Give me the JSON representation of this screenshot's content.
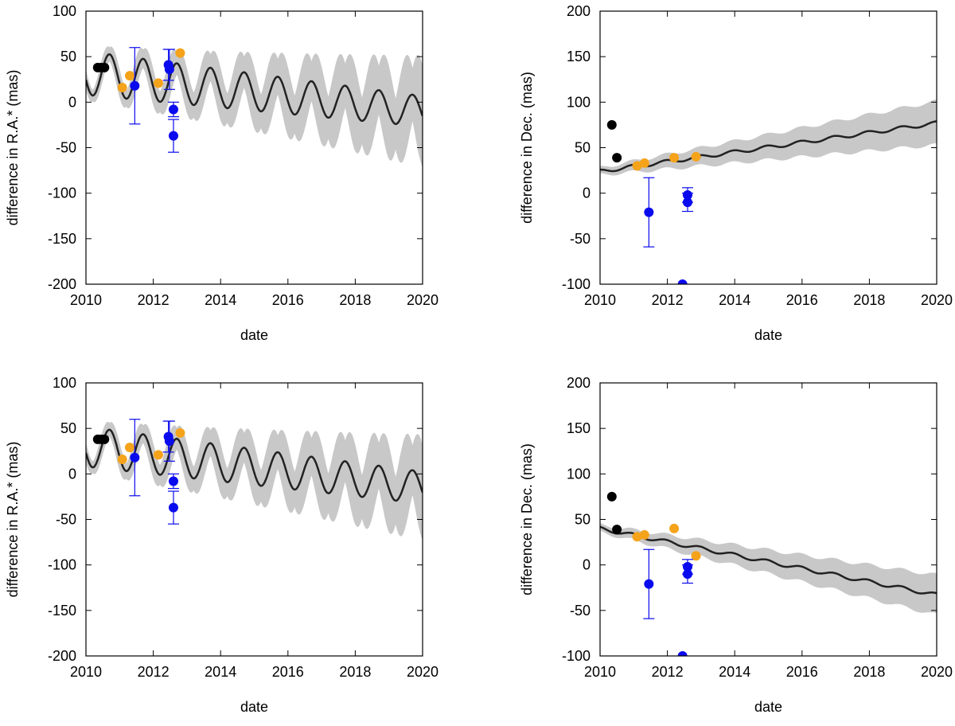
{
  "colors": {
    "black": "#000000",
    "orange": "#f5a31b",
    "blue": "#0a0aee",
    "band": "#c8c8c8",
    "model": "#222222"
  },
  "chart_data": [
    {
      "id": "tl",
      "type": "scatter",
      "xlabel": "date",
      "ylabel": "difference in R.A.* (mas)",
      "xlim": [
        2010,
        2020
      ],
      "ylim": [
        -200,
        100
      ],
      "xticks": [
        "2010",
        "2012",
        "2014",
        "2016",
        "2018",
        "2020"
      ],
      "yticks": [
        "-200",
        "-150",
        "-100",
        "-50",
        "0",
        "50",
        "100"
      ],
      "model": {
        "kind": "ra",
        "a0": 32,
        "slope": -4.2,
        "amp": 24,
        "phase": 0.55,
        "damp": 0.03,
        "band0": 6,
        "bandgrow": 2.4
      },
      "points": {
        "black": [
          [
            2010.35,
            38
          ],
          [
            2010.45,
            38
          ],
          [
            2010.55,
            38
          ]
        ],
        "orange": [
          [
            2011.08,
            16
          ],
          [
            2011.3,
            29
          ],
          [
            2012.15,
            21
          ],
          [
            2012.8,
            54
          ]
        ],
        "blue": [
          [
            2011.45,
            18,
            42
          ],
          [
            2012.45,
            41,
            17
          ],
          [
            2012.48,
            36,
            22
          ],
          [
            2012.6,
            -8,
            8
          ],
          [
            2012.6,
            -37,
            18
          ]
        ]
      }
    },
    {
      "id": "tr",
      "type": "scatter",
      "xlabel": "date",
      "ylabel": "difference in Dec. (mas)",
      "xlim": [
        2010,
        2020
      ],
      "ylim": [
        -100,
        200
      ],
      "xticks": [
        "2010",
        "2012",
        "2014",
        "2016",
        "2018",
        "2020"
      ],
      "yticks": [
        "-100",
        "-50",
        "0",
        "50",
        "100",
        "150",
        "200"
      ],
      "model": {
        "kind": "dec",
        "a0": 24,
        "slope": 5.3,
        "amp": 2,
        "phase": 0.3,
        "band0": 4,
        "bandgrow": 2.0
      },
      "points": {
        "black": [
          [
            2010.35,
            75
          ],
          [
            2010.5,
            39
          ]
        ],
        "orange": [
          [
            2011.1,
            30
          ],
          [
            2011.32,
            33
          ],
          [
            2012.2,
            39
          ],
          [
            2012.85,
            40
          ]
        ],
        "blue": [
          [
            2011.45,
            -21,
            38
          ],
          [
            2012.45,
            -100,
            0
          ],
          [
            2012.6,
            -2,
            8
          ],
          [
            2012.6,
            -10,
            10
          ]
        ]
      }
    },
    {
      "id": "bl",
      "type": "scatter",
      "xlabel": "date",
      "ylabel": "difference in R.A.* (mas)",
      "xlim": [
        2010,
        2020
      ],
      "ylim": [
        -200,
        100
      ],
      "xticks": [
        "2010",
        "2012",
        "2014",
        "2016",
        "2018",
        "2020"
      ],
      "yticks": [
        "-200",
        "-150",
        "-100",
        "-50",
        "0",
        "50",
        "100"
      ],
      "model": {
        "kind": "ra",
        "a0": 30,
        "slope": -4.5,
        "amp": 22,
        "phase": 0.55,
        "damp": 0.02,
        "band0": 6,
        "bandgrow": 2.2
      },
      "points": {
        "black": [
          [
            2010.35,
            38
          ],
          [
            2010.45,
            38
          ],
          [
            2010.55,
            38
          ]
        ],
        "orange": [
          [
            2011.08,
            16
          ],
          [
            2011.3,
            29
          ],
          [
            2012.15,
            21
          ],
          [
            2012.8,
            45
          ]
        ],
        "blue": [
          [
            2011.45,
            18,
            42
          ],
          [
            2012.45,
            41,
            17
          ],
          [
            2012.48,
            36,
            22
          ],
          [
            2012.6,
            -8,
            8
          ],
          [
            2012.6,
            -37,
            18
          ]
        ]
      }
    },
    {
      "id": "br",
      "type": "scatter",
      "xlabel": "date",
      "ylabel": "difference in Dec. (mas)",
      "xlim": [
        2010,
        2020
      ],
      "ylim": [
        -100,
        200
      ],
      "xticks": [
        "2010",
        "2012",
        "2014",
        "2016",
        "2018",
        "2020"
      ],
      "yticks": [
        "-100",
        "-50",
        "0",
        "50",
        "100",
        "150",
        "200"
      ],
      "model": {
        "kind": "dec",
        "a0": 40,
        "slope": -7.3,
        "amp": 2,
        "phase": 0.3,
        "band0": 4,
        "bandgrow": 1.8
      },
      "points": {
        "black": [
          [
            2010.35,
            75
          ],
          [
            2010.5,
            39
          ]
        ],
        "orange": [
          [
            2011.1,
            31
          ],
          [
            2011.32,
            33
          ],
          [
            2012.2,
            40
          ],
          [
            2012.85,
            10
          ]
        ],
        "blue": [
          [
            2011.45,
            -21,
            38
          ],
          [
            2012.45,
            -100,
            0
          ],
          [
            2012.6,
            -2,
            8
          ],
          [
            2012.6,
            -10,
            10
          ]
        ]
      }
    }
  ]
}
